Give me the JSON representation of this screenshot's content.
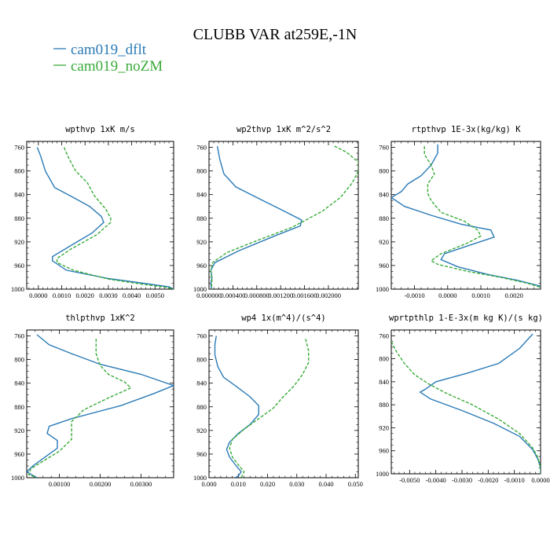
{
  "figure": {
    "title": "CLUBB VAR at259E,-1N",
    "legend": [
      {
        "name": "cam019_dflt",
        "color": "#2a7ab6"
      },
      {
        "name": "cam019_noZM",
        "color": "#3aab3a"
      }
    ]
  },
  "chart_data": [
    {
      "type": "line",
      "title": "wpthvp   1xK m/s",
      "xlim": [
        -0.0005,
        0.0058
      ],
      "ylim": [
        1000,
        750
      ],
      "xticks": [
        0.0,
        0.001,
        0.002,
        0.003,
        0.004,
        0.005
      ],
      "xtick_labels": [
        "0.0000",
        "0.0010",
        "0.0020",
        "0.0030",
        "0.0040",
        "0.0050"
      ],
      "yticks": [
        760,
        800,
        840,
        880,
        920,
        960,
        1000
      ],
      "ytick_labels": [
        "760",
        "800",
        "840",
        "880",
        "920",
        "960",
        "1000"
      ],
      "series": [
        {
          "name": "cam019_dflt",
          "color": "#2a7ab6",
          "dash": "",
          "points": [
            [
              -5e-05,
              760
            ],
            [
              0.0001,
              775
            ],
            [
              0.0003,
              800
            ],
            [
              0.0007,
              828
            ],
            [
              0.0015,
              845
            ],
            [
              0.0022,
              860
            ],
            [
              0.0027,
              877
            ],
            [
              0.0028,
              887
            ],
            [
              0.0023,
              905
            ],
            [
              0.0014,
              926
            ],
            [
              0.0006,
              945
            ],
            [
              0.0006,
              952
            ],
            [
              0.0012,
              968
            ],
            [
              0.003,
              982
            ],
            [
              0.0045,
              990
            ],
            [
              0.0056,
              996
            ],
            [
              0.0058,
              1000
            ]
          ]
        },
        {
          "name": "cam019_noZM",
          "color": "#3aab3a",
          "dash": "4,2",
          "points": [
            [
              0.0011,
              760
            ],
            [
              0.0013,
              778
            ],
            [
              0.0016,
              800
            ],
            [
              0.0021,
              820
            ],
            [
              0.0024,
              842
            ],
            [
              0.0029,
              865
            ],
            [
              0.0031,
              880
            ],
            [
              0.0031,
              887
            ],
            [
              0.0025,
              908
            ],
            [
              0.0014,
              932
            ],
            [
              0.0008,
              948
            ],
            [
              0.0008,
              955
            ],
            [
              0.0015,
              968
            ],
            [
              0.003,
              983
            ],
            [
              0.0045,
              992
            ],
            [
              0.0055,
              997
            ],
            [
              0.0058,
              1000
            ]
          ]
        }
      ]
    },
    {
      "type": "line",
      "title": "wp2thvp   1xK m^2/s^2",
      "xlim": [
        0.0,
        0.0025
      ],
      "ylim": [
        1000,
        750
      ],
      "xticks": [
        0.0,
        0.0004,
        0.0008,
        0.0012,
        0.0016,
        0.002
      ],
      "xtick_labels": [
        "0.000000",
        "0.000400",
        "0.000800",
        "0.001200",
        "0.001600",
        "0.002000"
      ],
      "yticks": [
        760,
        800,
        840,
        880,
        920,
        960,
        1000
      ],
      "ytick_labels": [
        "760",
        "800",
        "840",
        "880",
        "920",
        "960",
        "1000"
      ],
      "series": [
        {
          "name": "cam019_dflt",
          "color": "#2a7ab6",
          "dash": "",
          "points": [
            [
              0.00014,
              758
            ],
            [
              0.00018,
              780
            ],
            [
              0.00025,
              805
            ],
            [
              0.00045,
              827
            ],
            [
              0.0008,
              845
            ],
            [
              0.0012,
              865
            ],
            [
              0.00155,
              883
            ],
            [
              0.00153,
              893
            ],
            [
              0.0011,
              910
            ],
            [
              0.0005,
              935
            ],
            [
              0.0001,
              955
            ],
            [
              3e-05,
              968
            ],
            [
              5e-05,
              980
            ],
            [
              3e-05,
              990
            ],
            [
              4e-05,
              1000
            ]
          ]
        },
        {
          "name": "cam019_noZM",
          "color": "#3aab3a",
          "dash": "4,2",
          "points": [
            [
              0.0021,
              758
            ],
            [
              0.0023,
              768
            ],
            [
              0.0025,
              785
            ],
            [
              0.0025,
              800
            ],
            [
              0.0024,
              820
            ],
            [
              0.0022,
              845
            ],
            [
              0.0019,
              868
            ],
            [
              0.0014,
              895
            ],
            [
              0.0008,
              918
            ],
            [
              0.0003,
              938
            ],
            [
              6e-05,
              955
            ],
            [
              3e-05,
              970
            ],
            [
              5e-05,
              983
            ],
            [
              4e-05,
              1000
            ]
          ]
        }
      ]
    },
    {
      "type": "line",
      "title": "rtpthvp   1E-3x(kg/kg) K",
      "xlim": [
        -0.0017,
        0.0028
      ],
      "ylim": [
        1000,
        750
      ],
      "xticks": [
        -0.001,
        0.0,
        0.001,
        0.002
      ],
      "xtick_labels": [
        "-0.0010",
        "0.0000",
        "0.0010",
        "0.0020"
      ],
      "yticks": [
        760,
        800,
        840,
        880,
        920,
        960,
        1000
      ],
      "ytick_labels": [
        "760",
        "800",
        "840",
        "880",
        "920",
        "960",
        "1000"
      ],
      "series": [
        {
          "name": "cam019_dflt",
          "color": "#2a7ab6",
          "dash": "",
          "points": [
            [
              -0.0003,
              755
            ],
            [
              -0.0003,
              770
            ],
            [
              -0.0005,
              790
            ],
            [
              -0.0008,
              808
            ],
            [
              -0.0012,
              822
            ],
            [
              -0.0014,
              835
            ],
            [
              -0.0017,
              845
            ],
            [
              -0.0013,
              860
            ],
            [
              -0.0005,
              875
            ],
            [
              0.0004,
              890
            ],
            [
              0.0013,
              900
            ],
            [
              0.0014,
              912
            ],
            [
              0.0007,
              925
            ],
            [
              -0.0001,
              940
            ],
            [
              -0.0002,
              950
            ],
            [
              0.0003,
              962
            ],
            [
              0.0012,
              975
            ],
            [
              0.0021,
              985
            ],
            [
              0.0028,
              995
            ]
          ]
        },
        {
          "name": "cam019_noZM",
          "color": "#3aab3a",
          "dash": "4,2",
          "points": [
            [
              -0.0007,
              758
            ],
            [
              -0.0007,
              772
            ],
            [
              -0.0005,
              790
            ],
            [
              -0.0004,
              805
            ],
            [
              -0.0006,
              822
            ],
            [
              -0.0006,
              838
            ],
            [
              -0.0005,
              850
            ],
            [
              -0.0002,
              870
            ],
            [
              0.0005,
              885
            ],
            [
              0.0009,
              900
            ],
            [
              0.001,
              910
            ],
            [
              0.0006,
              922
            ],
            [
              -0.0002,
              940
            ],
            [
              -0.0005,
              952
            ],
            [
              -0.0003,
              958
            ],
            [
              0.0006,
              970
            ],
            [
              0.0016,
              980
            ],
            [
              0.0024,
              990
            ],
            [
              0.0028,
              997
            ]
          ]
        }
      ]
    },
    {
      "type": "line",
      "title": "thlpthvp   1xK^2",
      "xlim": [
        0.0002,
        0.0038
      ],
      "ylim": [
        1000,
        750
      ],
      "xticks": [
        0.001,
        0.002,
        0.003
      ],
      "xtick_labels": [
        "0.00100",
        "0.00200",
        "0.00300"
      ],
      "yticks": [
        760,
        800,
        840,
        880,
        920,
        960,
        1000
      ],
      "ytick_labels": [
        "760",
        "800",
        "840",
        "880",
        "920",
        "960",
        "1000"
      ],
      "series": [
        {
          "name": "cam019_dflt",
          "color": "#2a7ab6",
          "dash": "",
          "points": [
            [
              0.00045,
              758
            ],
            [
              0.00075,
              775
            ],
            [
              0.0013,
              790
            ],
            [
              0.002,
              808
            ],
            [
              0.003,
              825
            ],
            [
              0.0038,
              844
            ],
            [
              0.0033,
              858
            ],
            [
              0.0025,
              878
            ],
            [
              0.0013,
              900
            ],
            [
              0.00075,
              913
            ],
            [
              0.0007,
              925
            ],
            [
              0.00095,
              937
            ],
            [
              0.00095,
              950
            ],
            [
              0.00065,
              965
            ],
            [
              0.00035,
              980
            ],
            [
              0.0002,
              990
            ],
            [
              0.00045,
              1000
            ]
          ]
        },
        {
          "name": "cam019_noZM",
          "color": "#3aab3a",
          "dash": "4,2",
          "points": [
            [
              0.0019,
              765
            ],
            [
              0.0019,
              790
            ],
            [
              0.002,
              810
            ],
            [
              0.0022,
              825
            ],
            [
              0.0026,
              838
            ],
            [
              0.00275,
              848
            ],
            [
              0.0022,
              865
            ],
            [
              0.0016,
              885
            ],
            [
              0.0013,
              905
            ],
            [
              0.0013,
              920
            ],
            [
              0.0013,
              935
            ],
            [
              0.001,
              955
            ],
            [
              0.0006,
              972
            ],
            [
              0.0003,
              985
            ],
            [
              0.00025,
              995
            ],
            [
              0.00045,
              1000
            ]
          ]
        }
      ]
    },
    {
      "type": "line",
      "title": "wp4   1x(m^4)/(s^4)",
      "xlim": [
        0.0,
        0.051
      ],
      "ylim": [
        1000,
        750
      ],
      "xticks": [
        0.0,
        0.01,
        0.02,
        0.03,
        0.04,
        0.05
      ],
      "xtick_labels": [
        "0.000",
        "0.010",
        "0.020",
        "0.030",
        "0.040",
        "0.050"
      ],
      "yticks": [
        760,
        800,
        840,
        880,
        920,
        960,
        1000
      ],
      "ytick_labels": [
        "760",
        "800",
        "840",
        "880",
        "920",
        "960",
        "1000"
      ],
      "series": [
        {
          "name": "cam019_dflt",
          "color": "#2a7ab6",
          "dash": "",
          "points": [
            [
              0.0025,
              760
            ],
            [
              0.002,
              775
            ],
            [
              0.002,
              792
            ],
            [
              0.003,
              812
            ],
            [
              0.005,
              830
            ],
            [
              0.01,
              848
            ],
            [
              0.014,
              863
            ],
            [
              0.017,
              878
            ],
            [
              0.017,
              893
            ],
            [
              0.014,
              910
            ],
            [
              0.01,
              925
            ],
            [
              0.007,
              940
            ],
            [
              0.006,
              952
            ],
            [
              0.007,
              965
            ],
            [
              0.009,
              978
            ],
            [
              0.011,
              990
            ],
            [
              0.01,
              997
            ],
            [
              0.009,
              1000
            ]
          ]
        },
        {
          "name": "cam019_noZM",
          "color": "#3aab3a",
          "dash": "4,2",
          "points": [
            [
              0.033,
              765
            ],
            [
              0.034,
              785
            ],
            [
              0.034,
              805
            ],
            [
              0.032,
              825
            ],
            [
              0.029,
              845
            ],
            [
              0.025,
              865
            ],
            [
              0.022,
              882
            ],
            [
              0.017,
              900
            ],
            [
              0.012,
              918
            ],
            [
              0.008,
              935
            ],
            [
              0.007,
              950
            ],
            [
              0.008,
              965
            ],
            [
              0.01,
              978
            ],
            [
              0.012,
              990
            ],
            [
              0.011,
              1000
            ]
          ]
        }
      ]
    },
    {
      "type": "line",
      "title": "wprtpthlp   1-E-3x(m kg K)/(s kg)",
      "xlim": [
        -0.0057,
        0.0
      ],
      "ylim": [
        1000,
        750
      ],
      "xticks": [
        -0.005,
        -0.004,
        -0.003,
        -0.002,
        -0.001,
        0.0
      ],
      "xtick_labels": [
        "-0.0050",
        "-0.0040",
        "-0.0030",
        "-0.0020",
        "-0.0010",
        "0.0000"
      ],
      "yticks": [
        760,
        800,
        840,
        880,
        920,
        960,
        1000
      ],
      "ytick_labels": [
        "760",
        "800",
        "840",
        "880",
        "920",
        "960",
        "1000"
      ],
      "series": [
        {
          "name": "cam019_dflt",
          "color": "#2a7ab6",
          "dash": "",
          "points": [
            [
              -0.0003,
              757
            ],
            [
              -0.0008,
              782
            ],
            [
              -0.0016,
              808
            ],
            [
              -0.0028,
              825
            ],
            [
              -0.004,
              840
            ],
            [
              -0.0044,
              853
            ],
            [
              -0.0046,
              858
            ],
            [
              -0.0042,
              870
            ],
            [
              -0.003,
              890
            ],
            [
              -0.0018,
              912
            ],
            [
              -0.0008,
              935
            ],
            [
              -0.0003,
              958
            ],
            [
              -0.0001,
              975
            ],
            [
              0.0,
              990
            ],
            [
              0.0,
              1000
            ]
          ]
        },
        {
          "name": "cam019_noZM",
          "color": "#3aab3a",
          "dash": "4,2",
          "points": [
            [
              -0.0057,
              770
            ],
            [
              -0.0055,
              788
            ],
            [
              -0.0052,
              808
            ],
            [
              -0.0048,
              828
            ],
            [
              -0.0043,
              843
            ],
            [
              -0.0036,
              860
            ],
            [
              -0.0026,
              880
            ],
            [
              -0.0016,
              905
            ],
            [
              -0.0008,
              930
            ],
            [
              -0.0003,
              955
            ],
            [
              -0.0001,
              972
            ],
            [
              0.0,
              990
            ],
            [
              0.0,
              1000
            ]
          ]
        }
      ]
    }
  ]
}
